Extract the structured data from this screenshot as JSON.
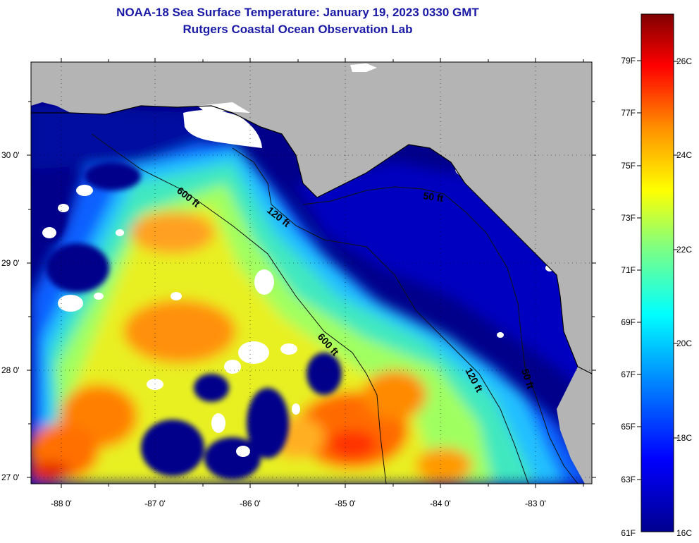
{
  "header": {
    "title": "NOAA-18 Sea Surface Temperature:  January 19, 2023 0330 GMT",
    "subtitle": "Rutgers Coastal Ocean Observation Lab"
  },
  "map": {
    "lon_ticks": [
      "-88 0'",
      "-87 0'",
      "-86 0'",
      "-85 0'",
      "-84 0'",
      "-83 0'"
    ],
    "lat_ticks": [
      "30 0'",
      "29 0'",
      "28 0'",
      "27 0'"
    ],
    "lon_range": [
      -88.3,
      -82.4
    ],
    "lat_range": [
      26.95,
      30.85
    ],
    "contour_labels": [
      "600 ft",
      "120 ft",
      "50 ft",
      "600 ft",
      "120 ft",
      "50 ft"
    ],
    "colors": {
      "land": "#b4b4b4",
      "cloud": "#ffffff",
      "cold": "#00008b"
    }
  },
  "colorbar": {
    "f_labels": [
      "79F",
      "77F",
      "75F",
      "73F",
      "71F",
      "69F",
      "67F",
      "65F",
      "63F",
      "61F"
    ],
    "c_labels": [
      "26C",
      "24C",
      "22C",
      "20C",
      "18C",
      "16C"
    ],
    "range_c": [
      16,
      27
    ]
  }
}
